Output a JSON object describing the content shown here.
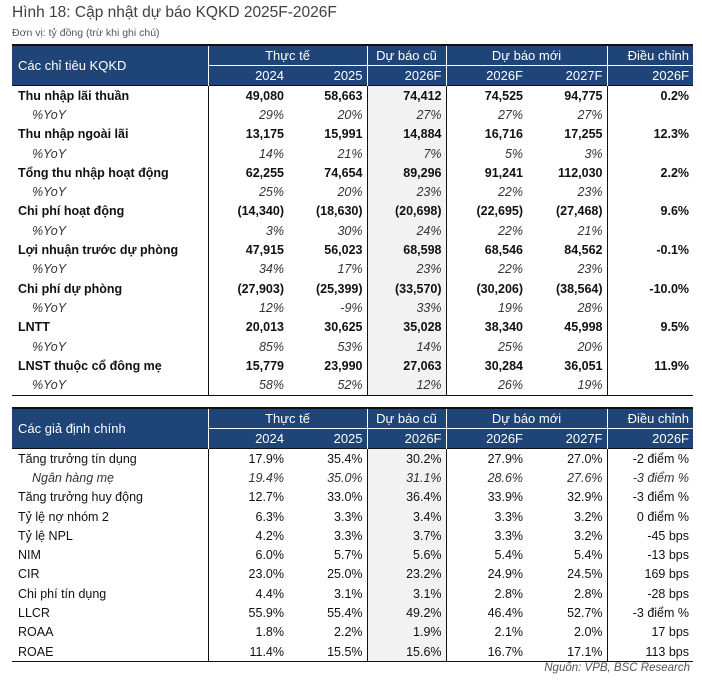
{
  "title": "Hình 18: Cập nhật dự báo KQKD 2025F-2026F",
  "unit": "Đơn vị: tỷ đồng (trừ khi ghi chú)",
  "header": {
    "actual": "Thực tế",
    "old": "Dự báo cũ",
    "new": "Dự báo mới",
    "adj": "Điều chỉnh",
    "years": [
      "2024",
      "2025",
      "2026F",
      "2026F",
      "2027F",
      "2026F"
    ]
  },
  "table1": {
    "label": "Các chỉ tiêu KQKD",
    "rows": [
      {
        "type": "bold",
        "label": "Thu nhập lãi thuần",
        "v": [
          "49,080",
          "58,663",
          "74,412",
          "74,525",
          "94,775",
          "0.2%"
        ]
      },
      {
        "type": "sub",
        "label": "%YoY",
        "v": [
          "29%",
          "20%",
          "27%",
          "27%",
          "27%",
          ""
        ]
      },
      {
        "type": "bold",
        "label": "Thu nhập ngoài lãi",
        "v": [
          "13,175",
          "15,991",
          "14,884",
          "16,716",
          "17,255",
          "12.3%"
        ]
      },
      {
        "type": "sub",
        "label": "%YoY",
        "v": [
          "14%",
          "21%",
          "7%",
          "5%",
          "3%",
          ""
        ]
      },
      {
        "type": "bold",
        "label": "Tổng thu nhập hoạt động",
        "v": [
          "62,255",
          "74,654",
          "89,296",
          "91,241",
          "112,030",
          "2.2%"
        ]
      },
      {
        "type": "sub",
        "label": "%YoY",
        "v": [
          "25%",
          "20%",
          "23%",
          "22%",
          "23%",
          ""
        ]
      },
      {
        "type": "bold",
        "label": "Chi phí hoạt động",
        "v": [
          "(14,340)",
          "(18,630)",
          "(20,698)",
          "(22,695)",
          "(27,468)",
          "9.6%"
        ]
      },
      {
        "type": "sub",
        "label": "%YoY",
        "v": [
          "3%",
          "30%",
          "24%",
          "22%",
          "21%",
          ""
        ]
      },
      {
        "type": "bold",
        "label": "Lợi nhuận trước dự phòng",
        "v": [
          "47,915",
          "56,023",
          "68,598",
          "68,546",
          "84,562",
          "-0.1%"
        ]
      },
      {
        "type": "sub",
        "label": "%YoY",
        "v": [
          "34%",
          "17%",
          "23%",
          "22%",
          "23%",
          ""
        ]
      },
      {
        "type": "bold",
        "label": "Chi phí dự phòng",
        "v": [
          "(27,903)",
          "(25,399)",
          "(33,570)",
          "(30,206)",
          "(38,564)",
          "-10.0%"
        ]
      },
      {
        "type": "sub",
        "label": "%YoY",
        "v": [
          "12%",
          "-9%",
          "33%",
          "19%",
          "28%",
          ""
        ]
      },
      {
        "type": "bold",
        "label": "LNTT",
        "v": [
          "20,013",
          "30,625",
          "35,028",
          "38,340",
          "45,998",
          "9.5%"
        ]
      },
      {
        "type": "sub",
        "label": "%YoY",
        "v": [
          "85%",
          "53%",
          "14%",
          "25%",
          "20%",
          ""
        ]
      },
      {
        "type": "bold",
        "label": "LNST thuộc cổ đông mẹ",
        "v": [
          "15,779",
          "23,990",
          "27,063",
          "30,284",
          "36,051",
          "11.9%"
        ]
      },
      {
        "type": "sub",
        "label": "%YoY",
        "v": [
          "58%",
          "52%",
          "12%",
          "26%",
          "19%",
          ""
        ]
      }
    ]
  },
  "table2": {
    "label": "Các giả định chính",
    "rows": [
      {
        "type": "norm",
        "label": "Tăng trưởng tín dụng",
        "v": [
          "17.9%",
          "35.4%",
          "30.2%",
          "27.9%",
          "27.0%",
          "-2 điểm %"
        ]
      },
      {
        "type": "sub",
        "label": "Ngân hàng mẹ",
        "v": [
          "19.4%",
          "35.0%",
          "31.1%",
          "28.6%",
          "27.6%",
          "-3 điểm %"
        ]
      },
      {
        "type": "norm",
        "label": "Tăng trưởng huy động",
        "v": [
          "12.7%",
          "33.0%",
          "36.4%",
          "33.9%",
          "32.9%",
          "-3 điểm %"
        ]
      },
      {
        "type": "norm",
        "label": "Tỷ lệ nợ nhóm 2",
        "v": [
          "6.3%",
          "3.3%",
          "3.4%",
          "3.3%",
          "3.2%",
          "0 điểm %"
        ]
      },
      {
        "type": "norm",
        "label": "Tỷ lệ NPL",
        "v": [
          "4.2%",
          "3.3%",
          "3.7%",
          "3.3%",
          "3.2%",
          "-45 bps"
        ]
      },
      {
        "type": "norm",
        "label": "NIM",
        "v": [
          "6.0%",
          "5.7%",
          "5.6%",
          "5.4%",
          "5.4%",
          "-13 bps"
        ]
      },
      {
        "type": "norm",
        "label": "CIR",
        "v": [
          "23.0%",
          "25.0%",
          "23.2%",
          "24.9%",
          "24.5%",
          "169 bps"
        ]
      },
      {
        "type": "norm",
        "label": "Chi phí tín dụng",
        "v": [
          "4.4%",
          "3.1%",
          "3.1%",
          "2.8%",
          "2.8%",
          "-28 bps"
        ]
      },
      {
        "type": "norm",
        "label": "LLCR",
        "v": [
          "55.9%",
          "55.4%",
          "49.2%",
          "46.4%",
          "52.7%",
          "-3 điểm %"
        ]
      },
      {
        "type": "norm",
        "label": "ROAA",
        "v": [
          "1.8%",
          "2.2%",
          "1.9%",
          "2.1%",
          "2.0%",
          "17 bps"
        ]
      },
      {
        "type": "norm",
        "label": "ROAE",
        "v": [
          "11.4%",
          "15.5%",
          "15.6%",
          "16.7%",
          "17.1%",
          "113 bps"
        ]
      }
    ]
  },
  "source": "Nguồn: VPB, BSC Research",
  "colors": {
    "header_bg": "#1f4477",
    "shade": "#f2f2f2"
  }
}
